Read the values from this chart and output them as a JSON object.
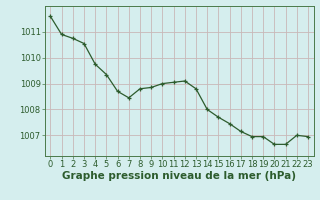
{
  "x": [
    0,
    1,
    2,
    3,
    4,
    5,
    6,
    7,
    8,
    9,
    10,
    11,
    12,
    13,
    14,
    15,
    16,
    17,
    18,
    19,
    20,
    21,
    22,
    23
  ],
  "y": [
    1011.6,
    1010.9,
    1010.75,
    1010.55,
    1009.75,
    1009.35,
    1008.7,
    1008.45,
    1008.8,
    1008.85,
    1009.0,
    1009.05,
    1009.1,
    1008.8,
    1008.0,
    1007.7,
    1007.45,
    1007.15,
    1006.95,
    1006.95,
    1006.65,
    1006.65,
    1007.0,
    1006.95
  ],
  "line_color": "#2d5c2d",
  "marker_color": "#2d5c2d",
  "bg_color": "#d5eeee",
  "grid_color": "#c8b8b8",
  "xlabel": "Graphe pression niveau de la mer (hPa)",
  "xlabel_fontsize": 7.5,
  "ylabel_ticks": [
    1007,
    1008,
    1009,
    1010,
    1011
  ],
  "xtick_labels": [
    "0",
    "1",
    "2",
    "3",
    "4",
    "5",
    "6",
    "7",
    "8",
    "9",
    "10",
    "11",
    "12",
    "13",
    "14",
    "15",
    "16",
    "17",
    "18",
    "19",
    "20",
    "21",
    "22",
    "23"
  ],
  "ylim": [
    1006.2,
    1012.0
  ],
  "xlim": [
    -0.5,
    23.5
  ],
  "tick_fontsize": 6.0,
  "figsize": [
    3.2,
    2.0
  ],
  "dpi": 100
}
